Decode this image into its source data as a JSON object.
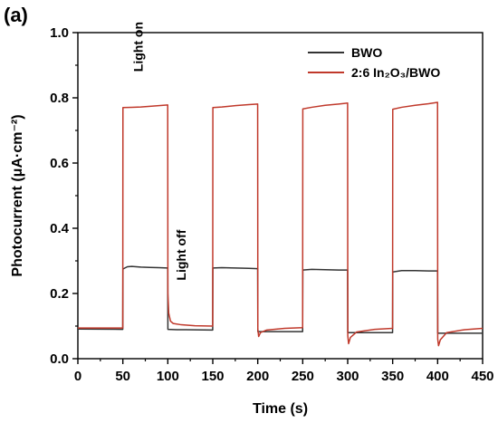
{
  "chart_data": {
    "type": "line",
    "panel_label": "(a)",
    "xlabel": "Time (s)",
    "ylabel": "Photocurrent (μA·cm⁻²)",
    "xlim": [
      0,
      450
    ],
    "ylim": [
      0.0,
      1.0
    ],
    "xticks": [
      0,
      50,
      100,
      150,
      200,
      250,
      300,
      350,
      400,
      450
    ],
    "yticks": [
      0.0,
      0.2,
      0.4,
      0.6,
      0.8,
      1.0
    ],
    "ytick_labels": [
      "0.0",
      "0.2",
      "0.4",
      "0.6",
      "0.8",
      "1.0"
    ],
    "grid": false,
    "legend_position": "top-right",
    "annotations": [
      {
        "text": "Light on",
        "x": 72,
        "y": 0.88,
        "rotation": -90
      },
      {
        "text": "Light off",
        "x": 120,
        "y": 0.24,
        "rotation": -90
      }
    ],
    "series": [
      {
        "name": "BWO",
        "color": "#333333",
        "points": [
          [
            0,
            0.091
          ],
          [
            49.9,
            0.09
          ],
          [
            50.1,
            0.275
          ],
          [
            55,
            0.282
          ],
          [
            60,
            0.283
          ],
          [
            70,
            0.281
          ],
          [
            80,
            0.28
          ],
          [
            90,
            0.279
          ],
          [
            99.9,
            0.278
          ],
          [
            100.1,
            0.09
          ],
          [
            110,
            0.089
          ],
          [
            120,
            0.089
          ],
          [
            149.9,
            0.088
          ],
          [
            150.1,
            0.278
          ],
          [
            160,
            0.279
          ],
          [
            175,
            0.278
          ],
          [
            190,
            0.277
          ],
          [
            199.9,
            0.276
          ],
          [
            200.1,
            0.083
          ],
          [
            210,
            0.083
          ],
          [
            230,
            0.083
          ],
          [
            249.9,
            0.083
          ],
          [
            250.1,
            0.272
          ],
          [
            260,
            0.274
          ],
          [
            275,
            0.273
          ],
          [
            290,
            0.272
          ],
          [
            299.9,
            0.272
          ],
          [
            300.1,
            0.08
          ],
          [
            310,
            0.08
          ],
          [
            330,
            0.08
          ],
          [
            349.9,
            0.08
          ],
          [
            350.1,
            0.266
          ],
          [
            360,
            0.27
          ],
          [
            375,
            0.27
          ],
          [
            390,
            0.269
          ],
          [
            399.9,
            0.269
          ],
          [
            400.1,
            0.078
          ],
          [
            410,
            0.078
          ],
          [
            430,
            0.078
          ],
          [
            450,
            0.078
          ]
        ]
      },
      {
        "name": "2:6 In₂O₃/BWO",
        "color": "#c0392b",
        "points": [
          [
            0,
            0.094
          ],
          [
            49.9,
            0.094
          ],
          [
            50.1,
            0.77
          ],
          [
            60,
            0.771
          ],
          [
            70,
            0.772
          ],
          [
            80,
            0.774
          ],
          [
            90,
            0.776
          ],
          [
            99.9,
            0.778
          ],
          [
            100.1,
            0.2
          ],
          [
            101,
            0.14
          ],
          [
            103,
            0.115
          ],
          [
            106,
            0.108
          ],
          [
            115,
            0.104
          ],
          [
            130,
            0.101
          ],
          [
            149.9,
            0.1
          ],
          [
            150.1,
            0.77
          ],
          [
            160,
            0.772
          ],
          [
            175,
            0.776
          ],
          [
            190,
            0.779
          ],
          [
            199.9,
            0.781
          ],
          [
            200.1,
            0.09
          ],
          [
            201,
            0.068
          ],
          [
            203,
            0.08
          ],
          [
            210,
            0.088
          ],
          [
            230,
            0.093
          ],
          [
            249.9,
            0.095
          ],
          [
            250.1,
            0.766
          ],
          [
            260,
            0.771
          ],
          [
            275,
            0.777
          ],
          [
            290,
            0.781
          ],
          [
            299.9,
            0.784
          ],
          [
            300.1,
            0.07
          ],
          [
            301,
            0.046
          ],
          [
            303,
            0.065
          ],
          [
            310,
            0.082
          ],
          [
            330,
            0.09
          ],
          [
            349.9,
            0.093
          ],
          [
            350.1,
            0.765
          ],
          [
            360,
            0.771
          ],
          [
            375,
            0.777
          ],
          [
            390,
            0.782
          ],
          [
            399.9,
            0.786
          ],
          [
            400.1,
            0.06
          ],
          [
            401,
            0.04
          ],
          [
            403,
            0.058
          ],
          [
            410,
            0.08
          ],
          [
            430,
            0.089
          ],
          [
            450,
            0.093
          ]
        ]
      }
    ]
  }
}
